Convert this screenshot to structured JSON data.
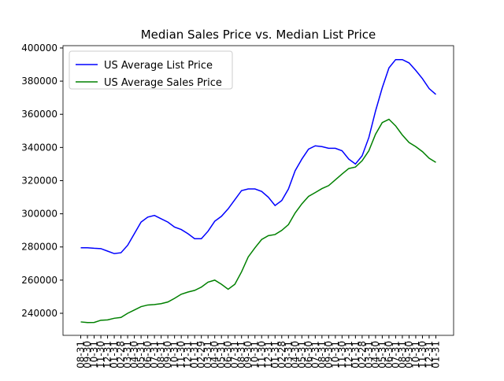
{
  "chart_data": {
    "type": "line",
    "title": "Median Sales Price vs. Median List Price",
    "categories": [
      "08-31",
      "09-30",
      "10-31",
      "11-30",
      "12-31",
      "01-31",
      "02-28",
      "03-31",
      "04-30",
      "05-31",
      "06-30",
      "07-31",
      "08-31",
      "09-30",
      "10-31",
      "11-30",
      "12-31",
      "01-31",
      "02-29",
      "03-31",
      "04-30",
      "05-31",
      "06-30",
      "07-31",
      "08-31",
      "09-30",
      "10-31",
      "11-30",
      "12-31",
      "01-31",
      "02-28",
      "03-31",
      "04-30",
      "05-31",
      "06-30",
      "07-31",
      "08-31",
      "09-30",
      "10-31",
      "11-30",
      "12-31",
      "01-31",
      "02-28",
      "03-31",
      "04-30",
      "05-31",
      "06-30",
      "07-31",
      "08-31",
      "09-30",
      "10-31",
      "11-30",
      "12-31",
      "01-31"
    ],
    "series": [
      {
        "name": "US Average List Price",
        "color": "#0000ff",
        "values": [
          279500,
          279500,
          279200,
          279000,
          277500,
          276000,
          276500,
          281000,
          288000,
          295000,
          298000,
          299000,
          297000,
          295000,
          292000,
          290500,
          288000,
          285000,
          285000,
          289500,
          295500,
          298500,
          303000,
          308500,
          314000,
          315000,
          315000,
          313500,
          310000,
          305000,
          308000,
          315000,
          326000,
          333000,
          339000,
          341000,
          340500,
          339500,
          339500,
          338000,
          333000,
          330000,
          335000,
          346000,
          362000,
          376000,
          388000,
          393000,
          393000,
          391000,
          386500,
          381500,
          375500,
          372000
        ]
      },
      {
        "name": "US Average Sales Price",
        "color": "#008000",
        "values": [
          234800,
          234400,
          234500,
          235800,
          236000,
          237000,
          237500,
          240000,
          242000,
          244000,
          245000,
          245300,
          245800,
          246800,
          249000,
          251500,
          252800,
          253800,
          255800,
          258800,
          260000,
          257500,
          254500,
          257500,
          265000,
          274000,
          279500,
          284500,
          286800,
          287500,
          290000,
          293500,
          300500,
          306000,
          310500,
          312800,
          315200,
          317000,
          320500,
          324000,
          327300,
          328200,
          332000,
          338000,
          348000,
          355000,
          357000,
          353000,
          347500,
          343000,
          340500,
          337500,
          333500,
          331000
        ]
      }
    ],
    "ylim": [
      226700,
      401400
    ],
    "yticks": [
      240000,
      260000,
      280000,
      300000,
      320000,
      340000,
      360000,
      380000,
      400000
    ],
    "legend": "upper left"
  }
}
